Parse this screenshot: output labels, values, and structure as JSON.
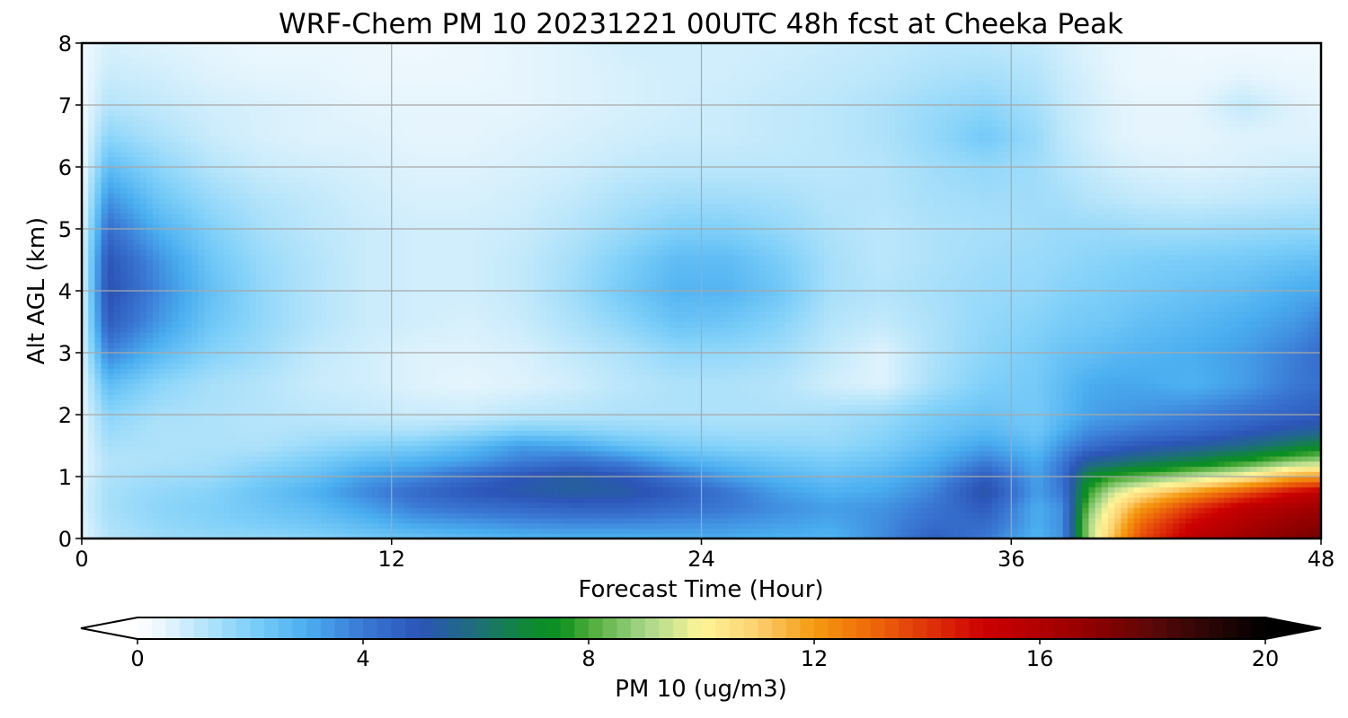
{
  "chart_data": {
    "type": "heatmap",
    "title": "WRF-Chem PM 10  20231221 00UTC 48h fcst at Cheeka Peak",
    "xlabel": "Forecast Time (Hour)",
    "ylabel": "Alt AGL (km)",
    "xlim": [
      0,
      48
    ],
    "ylim": [
      0,
      8
    ],
    "x_ticks": [
      "0",
      "12",
      "24",
      "36",
      "48"
    ],
    "y_ticks": [
      "0",
      "1",
      "2",
      "3",
      "4",
      "5",
      "6",
      "7",
      "8"
    ],
    "grid": true,
    "x_hours": [
      0,
      1,
      3,
      5,
      7,
      9,
      11,
      13,
      15,
      17,
      19,
      21,
      23,
      25,
      27,
      29,
      31,
      33,
      35,
      37,
      38,
      39,
      40,
      41,
      43,
      45,
      47,
      48
    ],
    "z_km": [
      0,
      0.25,
      0.5,
      0.75,
      1,
      1.25,
      1.5,
      1.75,
      2,
      2.5,
      3,
      3.5,
      4,
      4.5,
      5,
      5.5,
      6,
      6.5,
      7,
      7.5,
      8
    ],
    "pm10_rows_by_altitude": [
      [
        0.5,
        1.2,
        1.5,
        1.7,
        1.7,
        1.9,
        2.2,
        2.4,
        2.6,
        2.8,
        2.9,
        2.9,
        3.0,
        3.0,
        2.9,
        2.8,
        3.6,
        4.7,
        4.0,
        2.8,
        3.5,
        9.0,
        11.5,
        13.5,
        15.5,
        16.5,
        17.2,
        17.5
      ],
      [
        0.6,
        1.3,
        1.7,
        1.9,
        2.1,
        2.3,
        2.7,
        3.2,
        3.4,
        3.6,
        3.7,
        3.7,
        3.6,
        3.5,
        3.3,
        3.1,
        3.6,
        4.3,
        4.4,
        3.0,
        3.6,
        9.0,
        11.0,
        13.0,
        15.0,
        16.0,
        16.8,
        17.0
      ],
      [
        0.7,
        1.4,
        1.8,
        2.0,
        2.3,
        2.6,
        3.2,
        3.9,
        4.2,
        4.4,
        4.6,
        4.6,
        4.3,
        4.0,
        3.6,
        3.3,
        3.5,
        4.1,
        4.8,
        3.0,
        3.6,
        8.5,
        10.5,
        12.0,
        14.0,
        15.5,
        16.2,
        16.5
      ],
      [
        0.7,
        1.4,
        1.7,
        1.9,
        2.4,
        2.9,
        3.7,
        4.4,
        4.9,
        5.2,
        5.4,
        5.3,
        4.8,
        4.1,
        3.3,
        2.9,
        3.1,
        3.8,
        5.3,
        3.3,
        4.0,
        7.8,
        9.5,
        10.5,
        12.0,
        13.5,
        15.0,
        15.5
      ],
      [
        0.6,
        1.3,
        1.5,
        1.6,
        2.1,
        2.5,
        3.3,
        3.7,
        4.4,
        5.0,
        5.4,
        5.0,
        4.1,
        3.3,
        2.8,
        2.5,
        2.8,
        3.4,
        4.8,
        3.2,
        4.2,
        7.0,
        7.8,
        8.2,
        9.2,
        10.2,
        11.8,
        12.0
      ],
      [
        0.5,
        1.2,
        1.3,
        1.4,
        1.7,
        2.1,
        2.6,
        2.9,
        3.3,
        3.9,
        4.2,
        3.8,
        3.0,
        2.6,
        2.3,
        2.1,
        2.4,
        3.0,
        3.9,
        3.0,
        4.0,
        5.5,
        5.8,
        6.2,
        6.8,
        7.6,
        8.7,
        9.0
      ],
      [
        0.5,
        1.4,
        1.3,
        1.3,
        1.3,
        1.6,
        1.9,
        2.1,
        2.6,
        3.3,
        3.1,
        2.5,
        2.1,
        1.9,
        1.8,
        1.7,
        2.0,
        2.6,
        3.2,
        2.6,
        3.5,
        4.2,
        4.6,
        4.9,
        5.3,
        5.8,
        6.6,
        7.0
      ],
      [
        0.5,
        1.6,
        1.3,
        1.3,
        1.2,
        1.3,
        1.3,
        1.3,
        1.6,
        2.0,
        1.9,
        1.7,
        1.6,
        1.5,
        1.5,
        1.5,
        1.8,
        2.3,
        2.7,
        2.3,
        3.0,
        3.6,
        3.8,
        4.0,
        4.3,
        4.8,
        5.3,
        5.5
      ],
      [
        0.5,
        1.8,
        1.4,
        1.3,
        1.2,
        1.1,
        1.0,
        0.9,
        0.9,
        1.1,
        1.2,
        1.3,
        1.3,
        1.3,
        1.3,
        1.4,
        1.6,
        2.1,
        2.4,
        2.2,
        2.7,
        3.2,
        3.4,
        3.5,
        3.8,
        4.2,
        4.6,
        4.8
      ],
      [
        0.5,
        2.6,
        1.8,
        1.4,
        1.2,
        0.9,
        0.8,
        0.6,
        0.5,
        0.6,
        0.8,
        1.1,
        1.3,
        1.3,
        1.2,
        0.8,
        0.6,
        1.4,
        2.0,
        2.2,
        2.6,
        3.0,
        3.1,
        3.1,
        2.9,
        3.3,
        4.0,
        4.2
      ],
      [
        0.6,
        3.8,
        2.7,
        1.9,
        1.5,
        1.0,
        0.8,
        0.6,
        0.6,
        0.7,
        1.0,
        1.3,
        1.7,
        1.7,
        1.5,
        1.0,
        0.6,
        1.3,
        1.8,
        2.1,
        2.4,
        2.5,
        2.7,
        2.8,
        3.0,
        3.3,
        3.9,
        4.3
      ],
      [
        0.6,
        4.8,
        3.4,
        2.3,
        1.7,
        1.2,
        0.9,
        0.8,
        0.7,
        0.9,
        1.3,
        1.8,
        2.4,
        2.3,
        1.9,
        1.2,
        1.0,
        1.3,
        1.7,
        1.9,
        2.1,
        2.2,
        2.3,
        2.5,
        2.7,
        3.0,
        3.4,
        3.8
      ],
      [
        0.6,
        5.2,
        3.7,
        2.5,
        1.7,
        1.2,
        0.9,
        0.8,
        0.8,
        1.0,
        1.5,
        2.2,
        2.8,
        2.8,
        2.3,
        1.4,
        1.2,
        1.4,
        1.6,
        1.7,
        1.9,
        2.0,
        2.1,
        2.2,
        2.4,
        2.6,
        3.0,
        3.1
      ],
      [
        0.6,
        5.0,
        3.5,
        2.3,
        1.6,
        1.2,
        0.9,
        0.8,
        0.8,
        1.0,
        1.4,
        2.0,
        2.6,
        2.6,
        2.1,
        1.4,
        1.1,
        1.3,
        1.5,
        1.6,
        1.7,
        1.8,
        1.9,
        2.0,
        2.1,
        2.2,
        2.4,
        2.5
      ],
      [
        0.5,
        4.3,
        2.9,
        2.0,
        1.4,
        1.1,
        0.9,
        0.8,
        0.8,
        0.9,
        1.2,
        1.6,
        2.0,
        2.0,
        1.7,
        1.3,
        1.1,
        1.3,
        1.4,
        1.5,
        1.6,
        1.6,
        1.6,
        1.5,
        1.5,
        1.6,
        1.7,
        1.7
      ],
      [
        0.4,
        3.5,
        2.3,
        1.6,
        1.2,
        1.0,
        0.8,
        0.7,
        0.7,
        0.8,
        1.0,
        1.3,
        1.5,
        1.5,
        1.4,
        1.2,
        1.2,
        1.4,
        1.5,
        1.5,
        1.4,
        1.2,
        1.1,
        1.0,
        0.9,
        1.0,
        1.1,
        1.2
      ],
      [
        0.3,
        2.6,
        1.8,
        1.2,
        0.9,
        0.8,
        0.7,
        0.6,
        0.6,
        0.7,
        0.8,
        1.0,
        1.1,
        1.1,
        1.1,
        1.1,
        1.2,
        1.5,
        1.7,
        1.5,
        1.2,
        1.0,
        0.8,
        0.7,
        0.6,
        0.7,
        0.8,
        0.8
      ],
      [
        0.3,
        1.8,
        1.3,
        0.9,
        0.7,
        0.6,
        0.6,
        0.5,
        0.5,
        0.6,
        0.7,
        0.8,
        0.9,
        0.9,
        1.0,
        1.1,
        1.3,
        1.7,
        2.2,
        1.6,
        1.1,
        0.8,
        0.6,
        0.5,
        0.5,
        0.6,
        0.6,
        0.6
      ],
      [
        0.3,
        1.2,
        1.0,
        0.8,
        0.7,
        0.6,
        0.5,
        0.5,
        0.5,
        0.5,
        0.6,
        0.7,
        0.8,
        0.9,
        1.0,
        1.1,
        1.3,
        1.6,
        1.8,
        1.4,
        1.0,
        0.8,
        0.6,
        0.5,
        0.5,
        1.0,
        0.6,
        0.5
      ],
      [
        0.3,
        0.9,
        0.8,
        0.6,
        0.5,
        0.5,
        0.4,
        0.4,
        0.4,
        0.5,
        0.6,
        0.7,
        0.8,
        0.8,
        0.9,
        1.0,
        1.1,
        1.3,
        1.4,
        1.2,
        0.9,
        0.7,
        0.5,
        0.4,
        0.4,
        0.5,
        0.4,
        0.4
      ],
      [
        0.3,
        0.7,
        0.6,
        0.5,
        0.4,
        0.4,
        0.4,
        0.3,
        0.4,
        0.5,
        0.6,
        0.8,
        0.8,
        0.8,
        0.8,
        0.9,
        1.0,
        1.1,
        1.1,
        1.0,
        0.8,
        0.6,
        0.5,
        0.4,
        0.3,
        0.3,
        0.3,
        0.3
      ]
    ],
    "colorbar": {
      "label": "PM 10  (ug/m3)",
      "ticks": [
        "0",
        "4",
        "8",
        "12",
        "16",
        "20"
      ],
      "min": 0,
      "max": 20,
      "extend": "both",
      "color_stops": [
        [
          0,
          "#ffffff"
        ],
        [
          0.5,
          "#e6f5fd"
        ],
        [
          1,
          "#c2e9fb"
        ],
        [
          2,
          "#7fd0f9"
        ],
        [
          3,
          "#4aaef0"
        ],
        [
          4,
          "#3a78d4"
        ],
        [
          5,
          "#2c55b8"
        ],
        [
          6,
          "#1e6e7a"
        ],
        [
          7,
          "#0e8a30"
        ],
        [
          7.5,
          "#0c9020"
        ],
        [
          8,
          "#4caa38"
        ],
        [
          9,
          "#a6d68a"
        ],
        [
          10,
          "#fff598"
        ],
        [
          11,
          "#fbd070"
        ],
        [
          12,
          "#f59a10"
        ],
        [
          13,
          "#ee6a0a"
        ],
        [
          14,
          "#e0340a"
        ],
        [
          15,
          "#cc0000"
        ],
        [
          16,
          "#b00000"
        ],
        [
          17,
          "#8c0000"
        ],
        [
          18,
          "#5a0808"
        ],
        [
          19,
          "#2a0606"
        ],
        [
          20,
          "#000000"
        ]
      ]
    }
  }
}
